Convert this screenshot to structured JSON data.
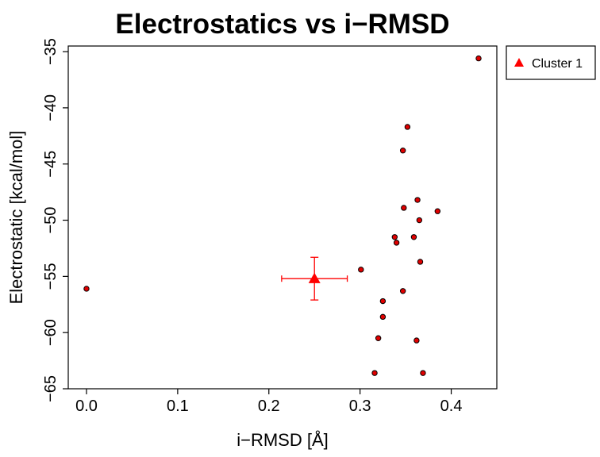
{
  "chart_data": {
    "type": "scatter",
    "title": "Electrostatics vs i−RMSD",
    "xlabel": "i−RMSD [Å]",
    "ylabel": "Electrostatic [kcal/mol]",
    "xlim": [
      -0.02,
      0.45
    ],
    "ylim": [
      -65,
      -34.5
    ],
    "x_ticks": [
      0.0,
      0.1,
      0.2,
      0.3,
      0.4
    ],
    "x_tick_labels": [
      "0.0",
      "0.1",
      "0.2",
      "0.3",
      "0.4"
    ],
    "y_ticks": [
      -35,
      -40,
      -45,
      -50,
      -55,
      -60,
      -65
    ],
    "y_tick_labels": [
      "−35",
      "−40",
      "−45",
      "−50",
      "−55",
      "−60",
      "−65"
    ],
    "grid": false,
    "legend_position": "outside-top-right",
    "points": [
      {
        "x": 0.0,
        "y": -56.1
      },
      {
        "x": 0.301,
        "y": -54.4
      },
      {
        "x": 0.316,
        "y": -63.6
      },
      {
        "x": 0.32,
        "y": -60.5
      },
      {
        "x": 0.325,
        "y": -57.2
      },
      {
        "x": 0.325,
        "y": -58.6
      },
      {
        "x": 0.338,
        "y": -51.5
      },
      {
        "x": 0.34,
        "y": -52.0
      },
      {
        "x": 0.347,
        "y": -56.3
      },
      {
        "x": 0.347,
        "y": -43.8
      },
      {
        "x": 0.348,
        "y": -48.9
      },
      {
        "x": 0.352,
        "y": -41.7
      },
      {
        "x": 0.359,
        "y": -51.5
      },
      {
        "x": 0.362,
        "y": -60.7
      },
      {
        "x": 0.363,
        "y": -48.2
      },
      {
        "x": 0.365,
        "y": -50.0
      },
      {
        "x": 0.366,
        "y": -53.7
      },
      {
        "x": 0.369,
        "y": -63.6
      },
      {
        "x": 0.385,
        "y": -49.2
      },
      {
        "x": 0.43,
        "y": -35.6
      }
    ],
    "point_color": "#e00000",
    "cluster": {
      "name": "Cluster 1",
      "x": 0.25,
      "y": -55.2,
      "x_err": 0.036,
      "y_err": 1.9,
      "color": "#ff0000",
      "marker": "triangle"
    }
  }
}
